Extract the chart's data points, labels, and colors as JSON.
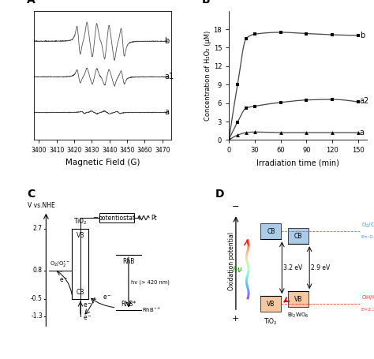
{
  "panel_A": {
    "label": "A",
    "xlabel": "Magnetic Field (G)",
    "x_start": 3397,
    "x_end": 3473,
    "xticks": [
      3400,
      3410,
      3420,
      3430,
      3440,
      3450,
      3460,
      3470
    ],
    "traces": [
      "b",
      "a1",
      "a"
    ],
    "offsets": [
      0.62,
      0.0,
      -0.62
    ],
    "amplitudes_b": 0.28,
    "amplitudes_a1": 0.13,
    "amplitudes_a": 0.04
  },
  "panel_B": {
    "label": "B",
    "xlabel": "Irradiation time (min)",
    "ylabel": "Concentration of H₂O₂ (μM)",
    "b_x": [
      0,
      10,
      20,
      30,
      60,
      90,
      120,
      150
    ],
    "b_y": [
      0.1,
      9.0,
      16.5,
      17.2,
      17.5,
      17.3,
      17.1,
      17.0
    ],
    "a2_x": [
      0,
      10,
      20,
      30,
      60,
      90,
      120,
      150
    ],
    "a2_y": [
      0.1,
      2.9,
      5.2,
      5.5,
      6.1,
      6.5,
      6.6,
      6.2
    ],
    "a_x": [
      0,
      10,
      20,
      30,
      60,
      90,
      120,
      150
    ],
    "a_y": [
      0.0,
      0.8,
      1.2,
      1.3,
      1.2,
      1.2,
      1.2,
      1.2
    ],
    "ylim": [
      0,
      21
    ],
    "yticks": [
      0,
      3,
      6,
      9,
      12,
      15,
      18
    ],
    "xlim": [
      0,
      160
    ],
    "xticks": [
      0,
      30,
      60,
      90,
      120,
      150
    ]
  },
  "panel_C": {
    "label": "C",
    "ytick_vals": [
      -1.3,
      -0.5,
      0.8,
      2.7
    ]
  },
  "panel_D": {
    "label": "D",
    "color_cb_tio2": "#AACCE8",
    "color_vb_tio2": "#F5C8A0",
    "color_cb_bi": "#AACCE8",
    "color_vb_bi": "#F5C8A0",
    "o2_color": "#4488FF",
    "oh_color": "#FF3333"
  }
}
